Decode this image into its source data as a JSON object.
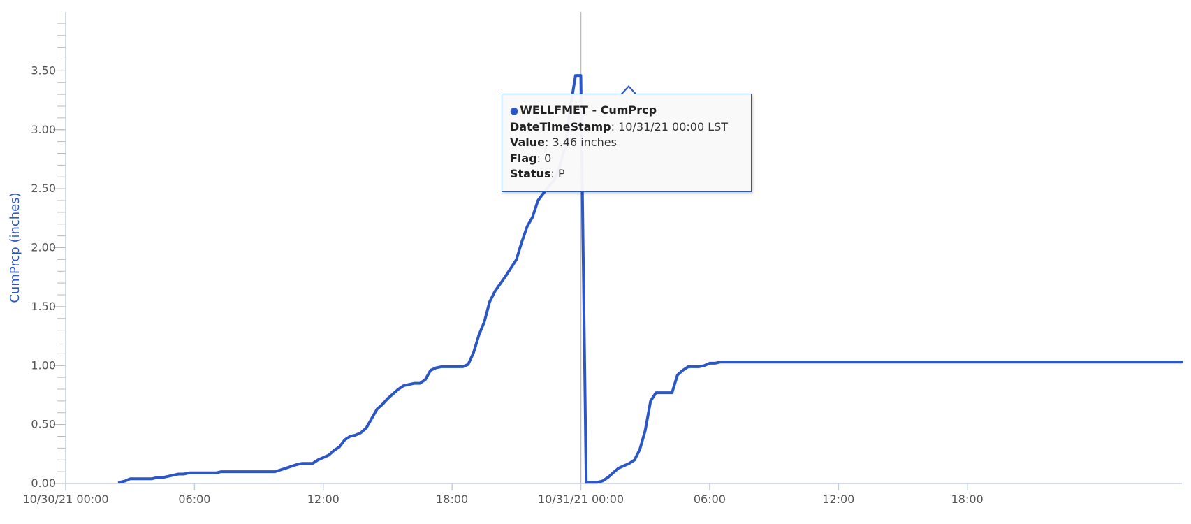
{
  "chart_data": {
    "type": "line",
    "title": "",
    "xlabel": "",
    "ylabel": "CumPrcp (inches)",
    "ylim": [
      0,
      4.0
    ],
    "y_major_ticks": [
      0,
      0.5,
      1.0,
      1.5,
      2.0,
      2.5,
      3.0,
      3.5
    ],
    "y_tick_labels": [
      "0.00",
      "0.50",
      "1.00",
      "1.50",
      "2.00",
      "2.50",
      "3.00",
      "3.50"
    ],
    "xlim": [
      "10/30/21 00:00",
      "11/01/21 04:00"
    ],
    "x_ticks": [
      "10/30/21 00:00",
      "06:00",
      "12:00",
      "18:00",
      "10/31/21 00:00",
      "06:00",
      "12:00",
      "18:00"
    ],
    "grid": false,
    "colors": {
      "series": "#2b57c6",
      "axis": "#c5cde0",
      "crosshair": "#bbbbbb",
      "tick_text": "#555555"
    },
    "series": [
      {
        "name": "WELLFMET - CumPrcp",
        "points": [
          [
            "10/30/21 02:30",
            0.01
          ],
          [
            "10/30/21 02:45",
            0.02
          ],
          [
            "10/30/21 03:00",
            0.04
          ],
          [
            "10/30/21 03:30",
            0.04
          ],
          [
            "10/30/21 04:00",
            0.04
          ],
          [
            "10/30/21 04:15",
            0.05
          ],
          [
            "10/30/21 04:30",
            0.05
          ],
          [
            "10/30/21 05:00",
            0.07
          ],
          [
            "10/30/21 05:15",
            0.08
          ],
          [
            "10/30/21 05:30",
            0.08
          ],
          [
            "10/30/21 05:45",
            0.09
          ],
          [
            "10/30/21 06:30",
            0.09
          ],
          [
            "10/30/21 07:00",
            0.09
          ],
          [
            "10/30/21 07:15",
            0.1
          ],
          [
            "10/30/21 07:45",
            0.1
          ],
          [
            "10/30/21 09:45",
            0.1
          ],
          [
            "10/30/21 10:15",
            0.13
          ],
          [
            "10/30/21 10:45",
            0.16
          ],
          [
            "10/30/21 11:00",
            0.17
          ],
          [
            "10/30/21 11:30",
            0.17
          ],
          [
            "10/30/21 11:45",
            0.2
          ],
          [
            "10/30/21 12:15",
            0.24
          ],
          [
            "10/30/21 12:30",
            0.28
          ],
          [
            "10/30/21 12:45",
            0.31
          ],
          [
            "10/30/21 13:00",
            0.37
          ],
          [
            "10/30/21 13:15",
            0.4
          ],
          [
            "10/30/21 13:30",
            0.41
          ],
          [
            "10/30/21 13:45",
            0.43
          ],
          [
            "10/30/21 14:00",
            0.47
          ],
          [
            "10/30/21 14:15",
            0.55
          ],
          [
            "10/30/21 14:30",
            0.63
          ],
          [
            "10/30/21 14:45",
            0.67
          ],
          [
            "10/30/21 15:00",
            0.72
          ],
          [
            "10/30/21 15:30",
            0.8
          ],
          [
            "10/30/21 15:45",
            0.83
          ],
          [
            "10/30/21 16:15",
            0.85
          ],
          [
            "10/30/21 16:30",
            0.85
          ],
          [
            "10/30/21 16:45",
            0.88
          ],
          [
            "10/30/21 17:00",
            0.96
          ],
          [
            "10/30/21 17:15",
            0.98
          ],
          [
            "10/30/21 17:30",
            0.99
          ],
          [
            "10/30/21 18:30",
            0.99
          ],
          [
            "10/30/21 18:45",
            1.01
          ],
          [
            "10/30/21 19:00",
            1.11
          ],
          [
            "10/30/21 19:15",
            1.26
          ],
          [
            "10/30/21 19:30",
            1.37
          ],
          [
            "10/30/21 19:45",
            1.54
          ],
          [
            "10/30/21 20:00",
            1.63
          ],
          [
            "10/30/21 20:30",
            1.76
          ],
          [
            "10/30/21 20:45",
            1.83
          ],
          [
            "10/30/21 21:00",
            1.9
          ],
          [
            "10/30/21 21:15",
            2.05
          ],
          [
            "10/30/21 21:30",
            2.18
          ],
          [
            "10/30/21 21:45",
            2.26
          ],
          [
            "10/30/21 22:00",
            2.4
          ],
          [
            "10/30/21 22:15",
            2.46
          ],
          [
            "10/30/21 22:30",
            2.52
          ],
          [
            "10/30/21 22:45",
            2.57
          ],
          [
            "10/30/21 23:00",
            2.68
          ],
          [
            "10/30/21 23:15",
            2.85
          ],
          [
            "10/30/21 23:30",
            3.18
          ],
          [
            "10/30/21 23:45",
            3.46
          ],
          [
            "10/31/21 00:00",
            3.46
          ],
          [
            "10/31/21 00:15",
            0.01
          ],
          [
            "10/31/21 00:30",
            0.01
          ],
          [
            "10/31/21 00:45",
            0.01
          ],
          [
            "10/31/21 01:00",
            0.02
          ],
          [
            "10/31/21 01:15",
            0.05
          ],
          [
            "10/31/21 01:30",
            0.09
          ],
          [
            "10/31/21 01:45",
            0.13
          ],
          [
            "10/31/21 02:00",
            0.15
          ],
          [
            "10/31/21 02:15",
            0.17
          ],
          [
            "10/31/21 02:30",
            0.2
          ],
          [
            "10/31/21 02:45",
            0.29
          ],
          [
            "10/31/21 03:00",
            0.45
          ],
          [
            "10/31/21 03:15",
            0.7
          ],
          [
            "10/31/21 03:30",
            0.77
          ],
          [
            "10/31/21 04:00",
            0.77
          ],
          [
            "10/31/21 04:15",
            0.77
          ],
          [
            "10/31/21 04:30",
            0.92
          ],
          [
            "10/31/21 04:45",
            0.96
          ],
          [
            "10/31/21 05:00",
            0.99
          ],
          [
            "10/31/21 05:30",
            0.99
          ],
          [
            "10/31/21 05:45",
            1.0
          ],
          [
            "10/31/21 06:00",
            1.02
          ],
          [
            "10/31/21 06:15",
            1.02
          ],
          [
            "10/31/21 06:30",
            1.03
          ],
          [
            "11/01/21 04:00",
            1.03
          ]
        ]
      }
    ],
    "crosshair_x": "10/31/21 00:00",
    "tooltip": {
      "series_name": "WELLFMET - CumPrcp",
      "datetime_label": "DateTimeStamp",
      "datetime_value": ": 10/31/21 00:00 LST",
      "value_label": "Value",
      "value_value": ": 3.46 inches",
      "flag_label": "Flag",
      "flag_value": ": 0",
      "status_label": "Status",
      "status_value": ": P"
    }
  }
}
